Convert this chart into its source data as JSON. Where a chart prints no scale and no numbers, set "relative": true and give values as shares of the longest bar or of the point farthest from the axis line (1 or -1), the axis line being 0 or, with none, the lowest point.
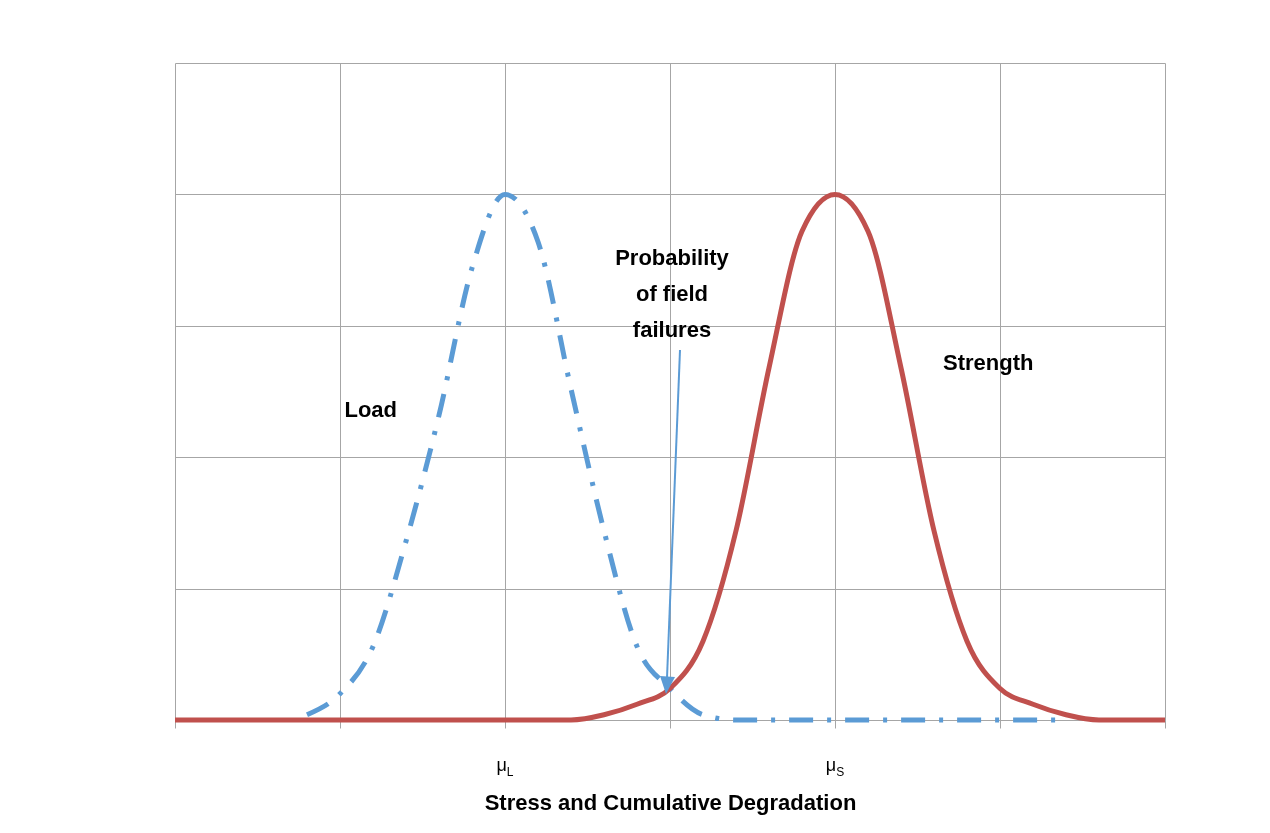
{
  "chart_data": {
    "type": "line",
    "relative": true,
    "xlabel": "Stress and Cumulative Degradation",
    "categories": [
      null,
      null,
      null,
      null,
      null,
      null,
      null,
      null,
      null,
      null,
      "μ$_{L}$",
      null,
      null,
      null,
      null,
      null,
      null,
      null,
      null,
      null,
      "μ$_{S}$",
      null,
      null,
      null,
      null,
      null,
      null,
      null,
      null,
      null,
      null
    ],
    "grid": true,
    "marker": "none",
    "series": [
      {
        "name": "Load",
        "color": "#5b9bd5",
        "line_style": "dashed",
        "values": [
          null,
          null,
          null,
          null,
          0.01,
          0.05,
          0.14,
          0.34,
          0.58,
          0.86,
          1,
          0.91,
          0.63,
          0.36,
          0.14,
          0.06,
          0.01,
          0,
          0,
          0,
          0,
          0,
          0,
          0,
          0,
          0,
          0,
          0,
          null,
          null,
          null
        ]
      },
      {
        "name": "Strength",
        "color": "#c0504d",
        "line_style": "solid",
        "values": [
          0,
          0,
          0,
          0,
          0,
          0,
          0,
          0,
          0,
          0,
          0,
          0,
          0,
          0.01,
          0.03,
          0.06,
          0.15,
          0.36,
          0.67,
          0.93,
          1,
          0.93,
          0.67,
          0.36,
          0.15,
          0.06,
          0.03,
          0.01,
          0,
          0,
          0
        ]
      }
    ],
    "annotations": [
      "Probability of field failures"
    ]
  }
}
